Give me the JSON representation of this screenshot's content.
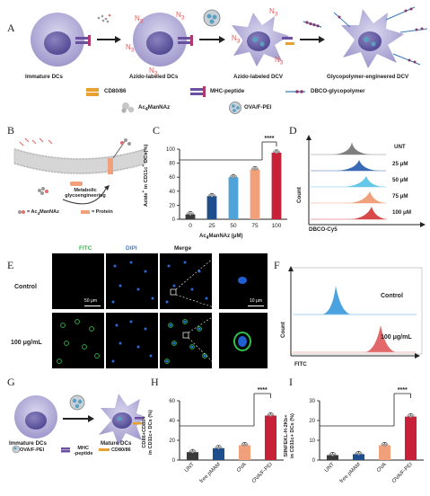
{
  "panels": {
    "A": "A",
    "B": "B",
    "C": "C",
    "D": "D",
    "E": "E",
    "F": "F",
    "G": "G",
    "H": "H",
    "I": "I"
  },
  "panelA": {
    "stages": [
      "Immature DCs",
      "Azido-labeled DCs",
      "Azido-labeled DCV",
      "Glycopolymer-engineered DCV"
    ],
    "azide": "N",
    "azide_sub": "3",
    "legend": {
      "cd": "CD80/86",
      "mhc": "MHC-peptide",
      "dbco": "DBCO-glycopolymer",
      "ac": "Ac",
      "ac_sub": "4",
      "ac_rest": "ManNAz",
      "ova": "OVA/F-PEI"
    }
  },
  "panelB": {
    "process": "Metabolic glycoengineering",
    "key_ac": "= Ac",
    "key_ac_sub": "4",
    "key_ac_rest": "ManNAz",
    "key_protein": "= Protein"
  },
  "chart_C": {
    "ylabel_pre": "Azide",
    "ylabel_sup": "+",
    "ylabel_mid": " in CD11c",
    "ylabel_sup2": "+",
    "ylabel_post": " DCs(%)",
    "xlabel_pre": "Ac",
    "xlabel_sub": "4",
    "xlabel_post": "ManNAz (μM)",
    "yticks": [
      "0",
      "20",
      "40",
      "60",
      "80",
      "100"
    ],
    "sig": "****"
  },
  "panelD": {
    "samples": [
      "UNT",
      "25 μM",
      "50 μM",
      "75 μM",
      "100 μM"
    ],
    "ylabel": "Count",
    "xlabel": "DBCO-Cy5"
  },
  "panelE": {
    "channels": [
      "FITC",
      "DIPI",
      "Merge"
    ],
    "rows": [
      "Control",
      "100 μg/mL"
    ],
    "scale1": "50 μm",
    "scale2": "10 μm"
  },
  "panelF": {
    "rows": [
      "Control",
      "100 μg/mL"
    ],
    "ylabel": "Count",
    "xlabel": "FITC"
  },
  "panelG": {
    "left": "Immature DCs",
    "right": "Mature DCs",
    "ova": "OVA/F-PEI",
    "mhc_line1": "MHC",
    "mhc_line2": "-peptide",
    "cd": "CD80/86"
  },
  "chart_H": {
    "ylabel_line1": "CD86+CD80+",
    "ylabel_line2": "in CD11c+ DCs (%)",
    "yticks": [
      "0",
      "20",
      "40",
      "60"
    ],
    "sig": "****"
  },
  "chart_I": {
    "ylabel_line1": "SIINFEKL-H-2Kb+",
    "ylabel_line2": "in CD11c+ DCs (%)",
    "yticks": [
      "0",
      "10",
      "20",
      "30"
    ],
    "sig": "****"
  },
  "chart_data": [
    {
      "type": "bar",
      "categories": [
        "0",
        "25",
        "50",
        "75",
        "100"
      ],
      "values": [
        7,
        33,
        60,
        71,
        95
      ],
      "ylim": [
        0,
        100
      ],
      "colors": [
        "#3a3a3a",
        "#1f4e8c",
        "#4ea3d8",
        "#f0a07a",
        "#c9203a"
      ]
    },
    {
      "type": "bar",
      "categories": [
        "UNT",
        "free pMAM",
        "OVA",
        "OVA/F-PEI"
      ],
      "values": [
        8,
        12,
        15,
        45
      ],
      "ylim": [
        0,
        60
      ],
      "colors": [
        "#3a3a3a",
        "#1f4e8c",
        "#f0a07a",
        "#c9203a"
      ]
    },
    {
      "type": "bar",
      "categories": [
        "UNT",
        "free pMAM",
        "OVA",
        "OVA/F-PEI"
      ],
      "values": [
        2.5,
        3,
        7.5,
        22
      ],
      "ylim": [
        0,
        30
      ],
      "colors": [
        "#3a3a3a",
        "#1f4e8c",
        "#f0a07a",
        "#c9203a"
      ]
    }
  ]
}
